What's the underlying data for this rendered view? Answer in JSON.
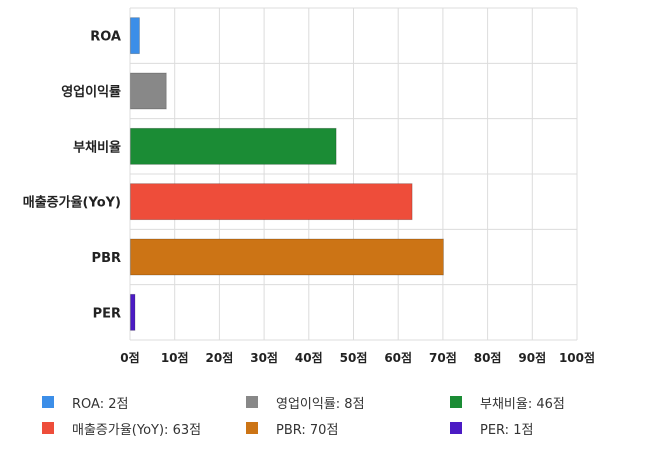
{
  "chart_data": {
    "type": "bar",
    "orientation": "horizontal",
    "categories": [
      "ROA",
      "영업이익률",
      "부채비율",
      "매출증가율(YoY)",
      "PBR",
      "PER"
    ],
    "values": [
      2,
      8,
      46,
      63,
      70,
      1
    ],
    "colors": [
      "#3c8ee8",
      "#888888",
      "#1b8c35",
      "#ee4d3a",
      "#cc7415",
      "#4b1bc4"
    ],
    "xlim": [
      0,
      100
    ],
    "xticks": [
      "0점",
      "10점",
      "20점",
      "30점",
      "40점",
      "50점",
      "60점",
      "70점",
      "80점",
      "90점",
      "100점"
    ],
    "grid": true,
    "legend_position": "bottom",
    "legend": [
      {
        "label": "ROA: 2점",
        "color": "#3c8ee8"
      },
      {
        "label": "영업이익률: 8점",
        "color": "#888888"
      },
      {
        "label": "부채비율: 46점",
        "color": "#1b8c35"
      },
      {
        "label": "매출증가율(YoY): 63점",
        "color": "#ee4d3a"
      },
      {
        "label": "PBR: 70점",
        "color": "#cc7415"
      },
      {
        "label": "PER: 1점",
        "color": "#4b1bc4"
      }
    ]
  }
}
